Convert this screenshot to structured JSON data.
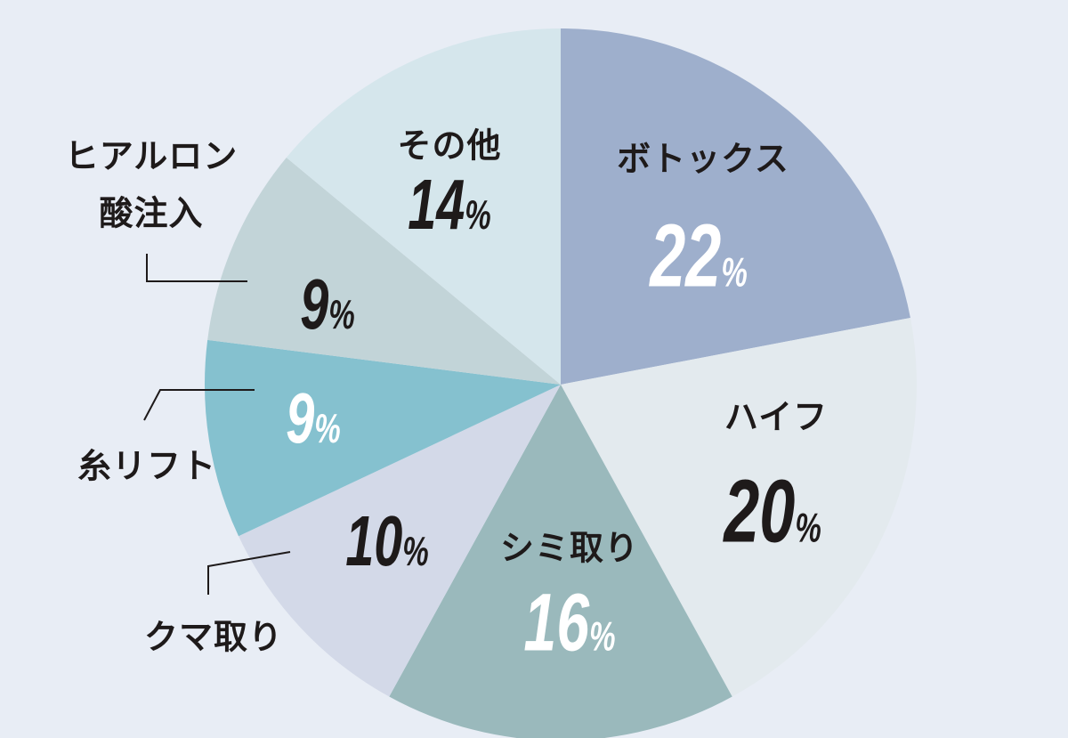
{
  "chart_data": {
    "type": "pie",
    "start": "top",
    "direction": "clockwise",
    "slices": [
      {
        "label": "ボトックス",
        "value": 22,
        "display": "22",
        "color": "#9eafcc",
        "text_color": "#ffffff"
      },
      {
        "label": "ハイフ",
        "value": 20,
        "display": "20",
        "color": "#e3eaee",
        "text_color": "#1e1a1a"
      },
      {
        "label": "シミ取り",
        "value": 16,
        "display": "16",
        "color": "#9ab9bc",
        "text_color": "#ffffff"
      },
      {
        "label": "クマ取り",
        "value": 10,
        "display": "10",
        "color": "#d3d9e8",
        "text_color": "#1e1a1a"
      },
      {
        "label": "糸リフト",
        "value": 9,
        "display": "9",
        "color": "#85c1cf",
        "text_color": "#ffffff"
      },
      {
        "label": "ヒアルロン酸注入",
        "label_lines": [
          "ヒアルロン",
          "酸注入"
        ],
        "value": 9,
        "display": "9",
        "color": "#c2d4d8",
        "text_color": "#1e1a1a"
      },
      {
        "label": "その他",
        "value": 14,
        "display": "14",
        "color": "#d5e6ec",
        "text_color": "#1e1a1a"
      }
    ],
    "unit": "%",
    "background": "#e8edf5"
  }
}
